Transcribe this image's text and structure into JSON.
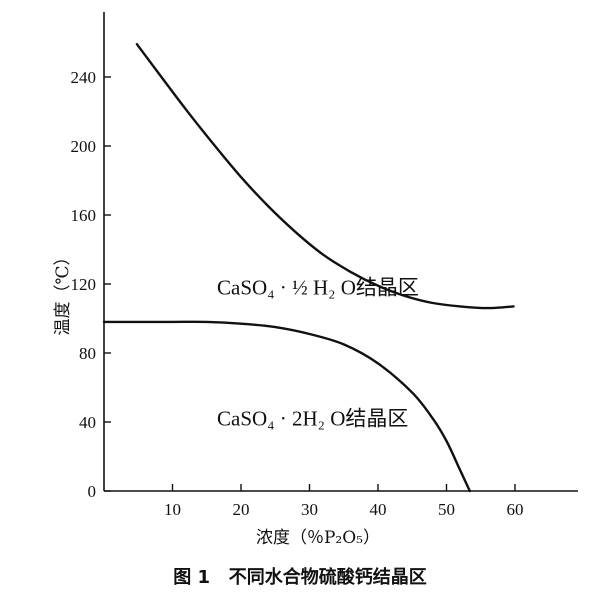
{
  "caption": "图 1   不同水合物硫酸钙结晶区",
  "chart_data": {
    "type": "line",
    "title": "",
    "xlabel": "浓度（％P₂O₅）",
    "ylabel": "温度（℃）",
    "xlim": [
      0,
      60
    ],
    "ylim": [
      0,
      260
    ],
    "x_ticks": [
      10,
      20,
      30,
      40,
      50,
      60
    ],
    "y_ticks": [
      0,
      40,
      80,
      120,
      160,
      200,
      240
    ],
    "grid": false,
    "series": [
      {
        "x": [
          4.8,
          8,
          12,
          16,
          20,
          24,
          28,
          32,
          36,
          40,
          44,
          48,
          52,
          56,
          59.8
        ],
        "y": [
          259,
          242,
          221,
          201,
          182,
          165,
          150,
          137,
          127,
          119,
          113,
          109,
          107,
          106,
          107
        ]
      },
      {
        "x": [
          0,
          5,
          10,
          15,
          20,
          25,
          30,
          35,
          40,
          45,
          48,
          50,
          52,
          53.4
        ],
        "y": [
          98,
          98,
          98,
          98,
          97,
          95,
          91,
          85,
          74,
          57,
          42,
          29,
          12,
          0
        ]
      }
    ],
    "annotations": [
      {
        "text": "CaSO₄ · ½ H₂ O结晶区",
        "x": 16.5,
        "y": 114
      },
      {
        "text": "CaSO₄ · 2H₂ O结晶区",
        "x": 16.5,
        "y": 38
      }
    ]
  }
}
